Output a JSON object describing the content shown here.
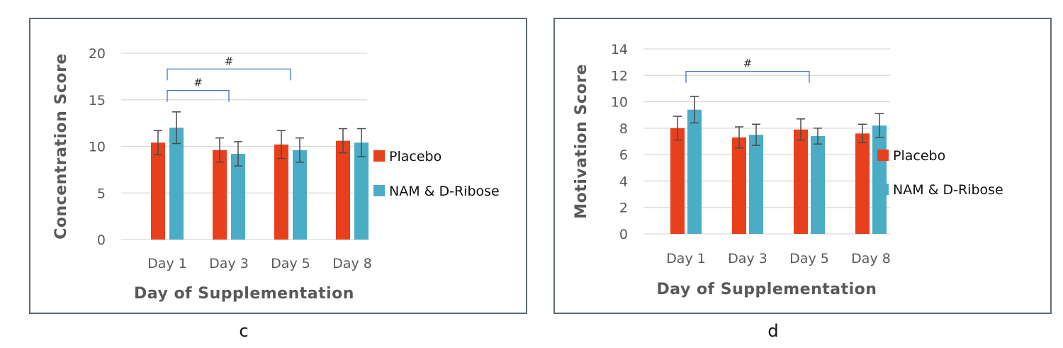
{
  "chart_data": [
    {
      "panel_label": "c",
      "type": "bar",
      "title": "",
      "xlabel": "Day of Supplementation",
      "ylabel": "Concentration Score",
      "ylim": [
        0,
        20
      ],
      "yticks": [
        0,
        5,
        10,
        15,
        20
      ],
      "grid": true,
      "legend": "right",
      "categories": [
        "Day 1",
        "Day 3",
        "Day 5",
        "Day 8"
      ],
      "series": [
        {
          "name": "Placebo",
          "color": "#e8401c",
          "values": [
            10.4,
            9.6,
            10.2,
            10.6
          ],
          "errors": [
            1.3,
            1.3,
            1.5,
            1.3
          ]
        },
        {
          "name": "NAM & D-Ribose",
          "color": "#4bacc6",
          "values": [
            12.0,
            9.2,
            9.6,
            10.4
          ],
          "errors": [
            1.7,
            1.3,
            1.3,
            1.5
          ]
        }
      ],
      "significance": [
        {
          "label": "#",
          "from": "Day 1",
          "to": "Day 3",
          "y": 16.0
        },
        {
          "label": "#",
          "from": "Day 1",
          "to": "Day 5",
          "y": 18.3
        }
      ]
    },
    {
      "panel_label": "d",
      "type": "bar",
      "title": "",
      "xlabel": "Day of Supplementation",
      "ylabel": "Motivation Score",
      "ylim": [
        0,
        14
      ],
      "yticks": [
        0,
        2,
        4,
        6,
        8,
        10,
        12,
        14
      ],
      "grid": true,
      "legend": "right",
      "categories": [
        "Day 1",
        "Day 3",
        "Day 5",
        "Day 8"
      ],
      "series": [
        {
          "name": "Placebo",
          "color": "#e8401c",
          "values": [
            8.0,
            7.3,
            7.9,
            7.6
          ],
          "errors": [
            0.9,
            0.8,
            0.8,
            0.7
          ]
        },
        {
          "name": "NAM & D-Ribose",
          "color": "#4bacc6",
          "values": [
            9.4,
            7.5,
            7.4,
            8.2
          ],
          "errors": [
            1.0,
            0.8,
            0.6,
            0.9
          ]
        }
      ],
      "significance": [
        {
          "label": "#",
          "from": "Day 1",
          "to": "Day 5",
          "y": 12.3
        }
      ]
    }
  ]
}
